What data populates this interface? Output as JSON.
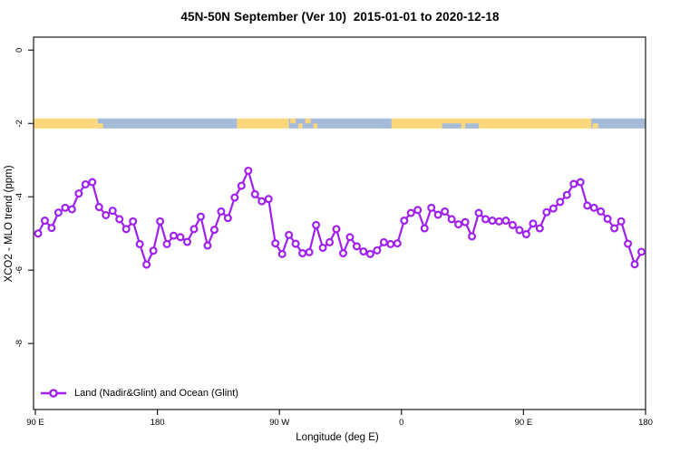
{
  "title": "45N-50N September (Ver 10)  2015-01-01 to 2020-12-18",
  "chart_data": {
    "type": "line",
    "title": "45N-50N September (Ver 10)  2015-01-01 to 2020-12-18",
    "xlabel": "Longitude (deg E)",
    "ylabel": "XCO2 - MLO trend (ppm)",
    "xlim": [
      88.7,
      540
    ],
    "ylim": [
      -9.8,
      0.33
    ],
    "grid": false,
    "x_ticks": [
      {
        "value": 90,
        "label": "90 E"
      },
      {
        "value": 180,
        "label": "180"
      },
      {
        "value": 270,
        "label": "90 W"
      },
      {
        "value": 360,
        "label": "0"
      },
      {
        "value": 450,
        "label": "90 E"
      },
      {
        "value": 540,
        "label": "180"
      }
    ],
    "y_ticks": [
      {
        "value": 0,
        "label": "0"
      },
      {
        "value": -2,
        "label": "-2"
      },
      {
        "value": -4,
        "label": "-4"
      },
      {
        "value": -6,
        "label": "-6"
      },
      {
        "value": -8,
        "label": "-8"
      }
    ],
    "series": [
      {
        "name": "Land (Nadir&Glint) and Ocean (Glint)",
        "color": "#A020F0",
        "marker": "open-circle",
        "x": [
          92,
          97,
          102,
          107,
          112,
          117,
          122,
          127,
          132,
          137,
          142,
          147,
          152,
          157,
          162,
          167,
          172,
          177,
          182,
          187,
          192,
          197,
          202,
          207,
          212,
          217,
          222,
          227,
          232,
          237,
          242,
          247,
          252,
          257,
          262,
          267,
          272,
          277,
          282,
          287,
          292,
          297,
          302,
          307,
          312,
          317,
          322,
          327,
          332,
          337,
          342,
          347,
          352,
          357,
          362,
          367,
          372,
          377,
          382,
          387,
          392,
          397,
          402,
          407,
          412,
          417,
          422,
          427,
          432,
          437,
          442,
          447,
          452,
          457,
          462,
          467,
          472,
          477,
          482,
          487,
          492,
          497,
          502,
          507,
          512,
          517,
          522,
          527,
          532,
          537
        ],
        "y": [
          -5.0,
          -4.65,
          -4.85,
          -4.43,
          -4.3,
          -4.34,
          -3.91,
          -3.66,
          -3.6,
          -4.28,
          -4.5,
          -4.38,
          -4.61,
          -4.88,
          -4.67,
          -5.29,
          -5.85,
          -5.47,
          -4.67,
          -5.29,
          -5.06,
          -5.1,
          -5.23,
          -4.88,
          -4.54,
          -5.33,
          -4.9,
          -4.4,
          -4.58,
          -4.02,
          -3.7,
          -3.29,
          -3.93,
          -4.12,
          -4.06,
          -5.27,
          -5.56,
          -5.04,
          -5.28,
          -5.54,
          -5.51,
          -4.77,
          -5.39,
          -5.24,
          -4.88,
          -5.54,
          -5.1,
          -5.35,
          -5.49,
          -5.56,
          -5.46,
          -5.24,
          -5.29,
          -5.27,
          -4.65,
          -4.44,
          -4.36,
          -4.86,
          -4.3,
          -4.49,
          -4.4,
          -4.61,
          -4.75,
          -4.69,
          -5.08,
          -4.44,
          -4.61,
          -4.65,
          -4.67,
          -4.65,
          -4.77,
          -4.91,
          -5.02,
          -4.73,
          -4.86,
          -4.42,
          -4.32,
          -4.14,
          -3.95,
          -3.65,
          -3.6,
          -4.24,
          -4.3,
          -4.4,
          -4.6,
          -4.86,
          -4.67,
          -5.28,
          -5.84,
          -5.5
        ]
      }
    ],
    "surface_band": {
      "y_value": -2,
      "land_color": "#FBD77C",
      "ocean_color": "#A4BBDA",
      "segments": [
        {
          "type": "land",
          "from": 88.7,
          "to": 136
        },
        {
          "type": "ocean",
          "from": 136,
          "to": 238.7
        },
        {
          "type": "land",
          "from": 238.7,
          "to": 277
        },
        {
          "type": "ocean",
          "from": 277,
          "to": 352.7
        },
        {
          "type": "land",
          "from": 352.7,
          "to": 500
        },
        {
          "type": "ocean",
          "from": 500,
          "to": 540
        }
      ],
      "patches": [
        {
          "type": "land",
          "from": 136,
          "to": 140,
          "half": "bottom"
        },
        {
          "type": "land",
          "from": 278,
          "to": 282,
          "half": "top"
        },
        {
          "type": "land",
          "from": 284,
          "to": 287,
          "half": "bottom"
        },
        {
          "type": "land",
          "from": 289,
          "to": 293,
          "half": "top"
        },
        {
          "type": "land",
          "from": 295,
          "to": 298,
          "half": "bottom"
        },
        {
          "type": "ocean",
          "from": 390,
          "to": 404,
          "half": "bottom"
        },
        {
          "type": "ocean",
          "from": 407,
          "to": 417,
          "half": "bottom"
        },
        {
          "type": "land",
          "from": 501,
          "to": 505,
          "half": "bottom"
        }
      ]
    },
    "legend": {
      "position": "bottom-left",
      "entries": [
        {
          "label": "Land (Nadir&Glint) and Ocean (Glint)",
          "color": "#A020F0"
        }
      ]
    }
  }
}
